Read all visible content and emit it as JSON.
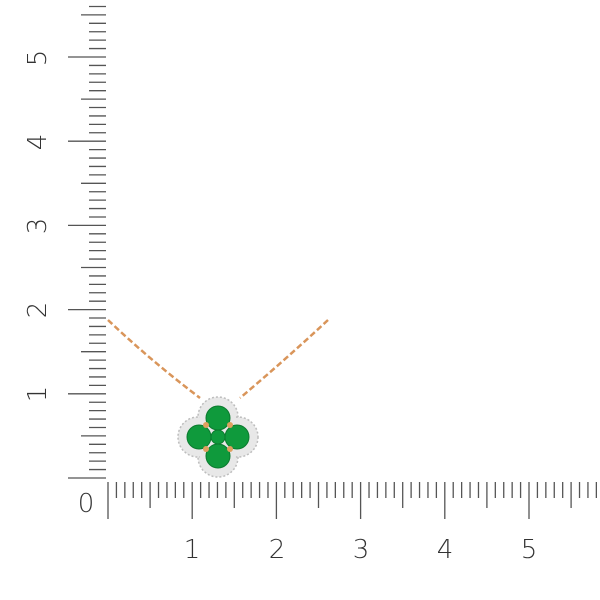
{
  "ruler": {
    "origin_label": "0",
    "x_labels": [
      "1",
      "2",
      "3",
      "4",
      "5"
    ],
    "y_labels": [
      "1",
      "2",
      "3",
      "4",
      "5"
    ],
    "tick_color": "#555555"
  },
  "product": {
    "type": "pendant necklace",
    "stone_color": "#0f9a3c",
    "metal_color": "#d9955a",
    "halo_color": "#e6e6e6"
  }
}
